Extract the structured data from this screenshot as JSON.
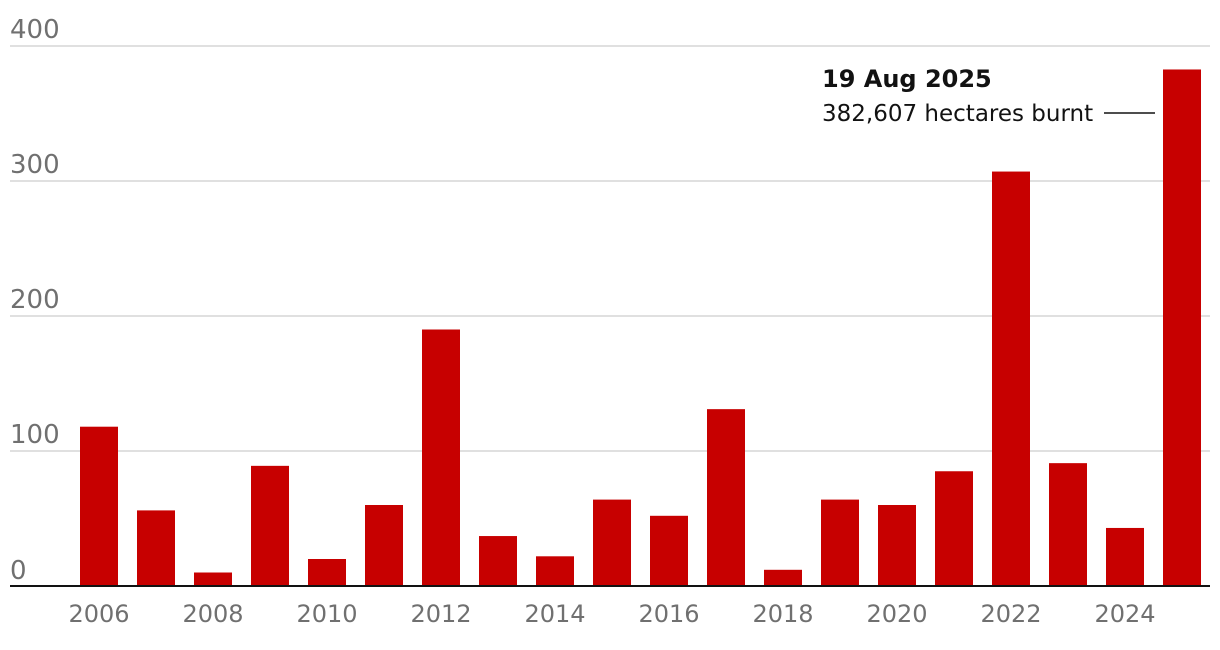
{
  "chart_data": {
    "type": "bar",
    "title": "",
    "xlabel": "",
    "ylabel": "",
    "ylim": [
      0,
      400
    ],
    "yticks": [
      0,
      100,
      200,
      300,
      400
    ],
    "grid": true,
    "bar_color": "#c70000",
    "categories": [
      "2006",
      "2007",
      "2008",
      "2009",
      "2010",
      "2011",
      "2012",
      "2013",
      "2014",
      "2015",
      "2016",
      "2017",
      "2018",
      "2019",
      "2020",
      "2021",
      "2022",
      "2023",
      "2024",
      "2025"
    ],
    "xtick_labels": [
      "2006",
      "2008",
      "2010",
      "2012",
      "2014",
      "2016",
      "2018",
      "2020",
      "2022",
      "2024"
    ],
    "values": [
      118,
      56,
      10,
      89,
      20,
      60,
      190,
      37,
      22,
      64,
      52,
      131,
      12,
      64,
      60,
      85,
      307,
      91,
      43,
      382.607
    ],
    "annotation": {
      "category": "2025",
      "title": "19 Aug 2025",
      "text": "382,607 hectares burnt"
    }
  }
}
